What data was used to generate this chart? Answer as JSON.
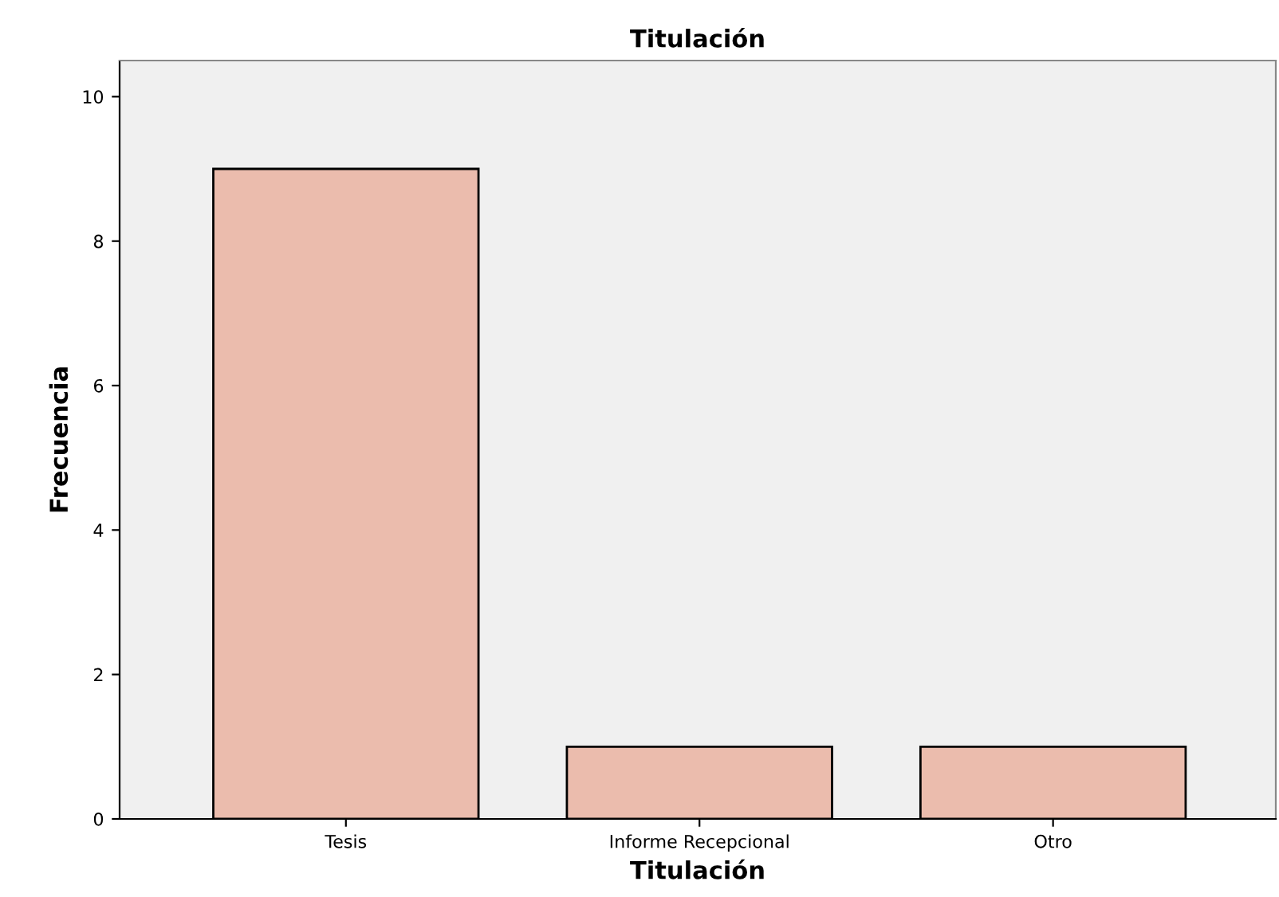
{
  "chart_data": {
    "type": "bar",
    "title": "Titulación",
    "xlabel": "Titulación",
    "ylabel": "Frecuencia",
    "categories": [
      "Tesis",
      "Informe Recepcional",
      "Otro"
    ],
    "values": [
      9,
      1,
      1
    ],
    "color": "#ebbcad",
    "ylim": [
      0,
      10.5
    ],
    "yticks": [
      0,
      2,
      4,
      6,
      8,
      10
    ],
    "grid": false
  }
}
